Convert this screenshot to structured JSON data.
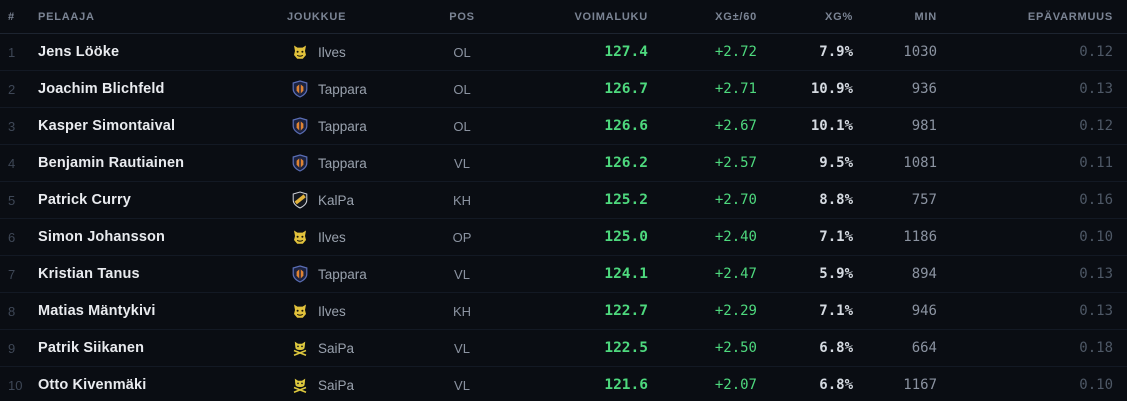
{
  "colors": {
    "background": "#0a0d13",
    "header_text": "#7b8494",
    "row_separator": "#131924",
    "rank_text": "#3e4756",
    "player_text": "#e9ebef",
    "team_text": "#99a1ad",
    "accent_green": "#4ed97e",
    "xg_percent_text": "#d5dae1",
    "min_text": "#8b93a1",
    "uncertainty_text": "#4e5866",
    "ilves_yellow": "#e2c23c",
    "tappara_orange": "#e08433",
    "tappara_blue": "#5a6db5",
    "kalpa_gold": "#e2b33c",
    "saipa_yellow": "#ddc83e"
  },
  "table": {
    "columns": [
      {
        "key": "rank",
        "label": "#",
        "align": "left"
      },
      {
        "key": "player",
        "label": "PELAAJA",
        "align": "left"
      },
      {
        "key": "team",
        "label": "JOUKKUE",
        "align": "left"
      },
      {
        "key": "pos",
        "label": "POS",
        "align": "center"
      },
      {
        "key": "voimaluku",
        "label": "VOIMALUKU",
        "align": "right"
      },
      {
        "key": "xg60",
        "label": "XG±/60",
        "align": "right"
      },
      {
        "key": "xgpct",
        "label": "XG%",
        "align": "right"
      },
      {
        "key": "min",
        "label": "MIN",
        "align": "right"
      },
      {
        "key": "uncertainty",
        "label": "EPÄVARMUUS",
        "align": "right"
      }
    ],
    "rows": [
      {
        "rank": "1",
        "player": "Jens Lööke",
        "team": "Ilves",
        "team_icon": "ilves-logo-icon",
        "pos": "OL",
        "voimaluku": "127.4",
        "xg60": "+2.72",
        "xgpct": "7.9%",
        "min": "1030",
        "uncertainty": "0.12"
      },
      {
        "rank": "2",
        "player": "Joachim Blichfeld",
        "team": "Tappara",
        "team_icon": "tappara-logo-icon",
        "pos": "OL",
        "voimaluku": "126.7",
        "xg60": "+2.71",
        "xgpct": "10.9%",
        "min": "936",
        "uncertainty": "0.13"
      },
      {
        "rank": "3",
        "player": "Kasper Simontaival",
        "team": "Tappara",
        "team_icon": "tappara-logo-icon",
        "pos": "OL",
        "voimaluku": "126.6",
        "xg60": "+2.67",
        "xgpct": "10.1%",
        "min": "981",
        "uncertainty": "0.12"
      },
      {
        "rank": "4",
        "player": "Benjamin Rautiainen",
        "team": "Tappara",
        "team_icon": "tappara-logo-icon",
        "pos": "VL",
        "voimaluku": "126.2",
        "xg60": "+2.57",
        "xgpct": "9.5%",
        "min": "1081",
        "uncertainty": "0.11"
      },
      {
        "rank": "5",
        "player": "Patrick Curry",
        "team": "KalPa",
        "team_icon": "kalpa-logo-icon",
        "pos": "KH",
        "voimaluku": "125.2",
        "xg60": "+2.70",
        "xgpct": "8.8%",
        "min": "757",
        "uncertainty": "0.16"
      },
      {
        "rank": "6",
        "player": "Simon Johansson",
        "team": "Ilves",
        "team_icon": "ilves-logo-icon",
        "pos": "OP",
        "voimaluku": "125.0",
        "xg60": "+2.40",
        "xgpct": "7.1%",
        "min": "1186",
        "uncertainty": "0.10"
      },
      {
        "rank": "7",
        "player": "Kristian Tanus",
        "team": "Tappara",
        "team_icon": "tappara-logo-icon",
        "pos": "VL",
        "voimaluku": "124.1",
        "xg60": "+2.47",
        "xgpct": "5.9%",
        "min": "894",
        "uncertainty": "0.13"
      },
      {
        "rank": "8",
        "player": "Matias Mäntykivi",
        "team": "Ilves",
        "team_icon": "ilves-logo-icon",
        "pos": "KH",
        "voimaluku": "122.7",
        "xg60": "+2.29",
        "xgpct": "7.1%",
        "min": "946",
        "uncertainty": "0.13"
      },
      {
        "rank": "9",
        "player": "Patrik Siikanen",
        "team": "SaiPa",
        "team_icon": "saipa-logo-icon",
        "pos": "VL",
        "voimaluku": "122.5",
        "xg60": "+2.50",
        "xgpct": "6.8%",
        "min": "664",
        "uncertainty": "0.18"
      },
      {
        "rank": "10",
        "player": "Otto Kivenmäki",
        "team": "SaiPa",
        "team_icon": "saipa-logo-icon",
        "pos": "VL",
        "voimaluku": "121.6",
        "xg60": "+2.07",
        "xgpct": "6.8%",
        "min": "1167",
        "uncertainty": "0.10"
      }
    ]
  }
}
